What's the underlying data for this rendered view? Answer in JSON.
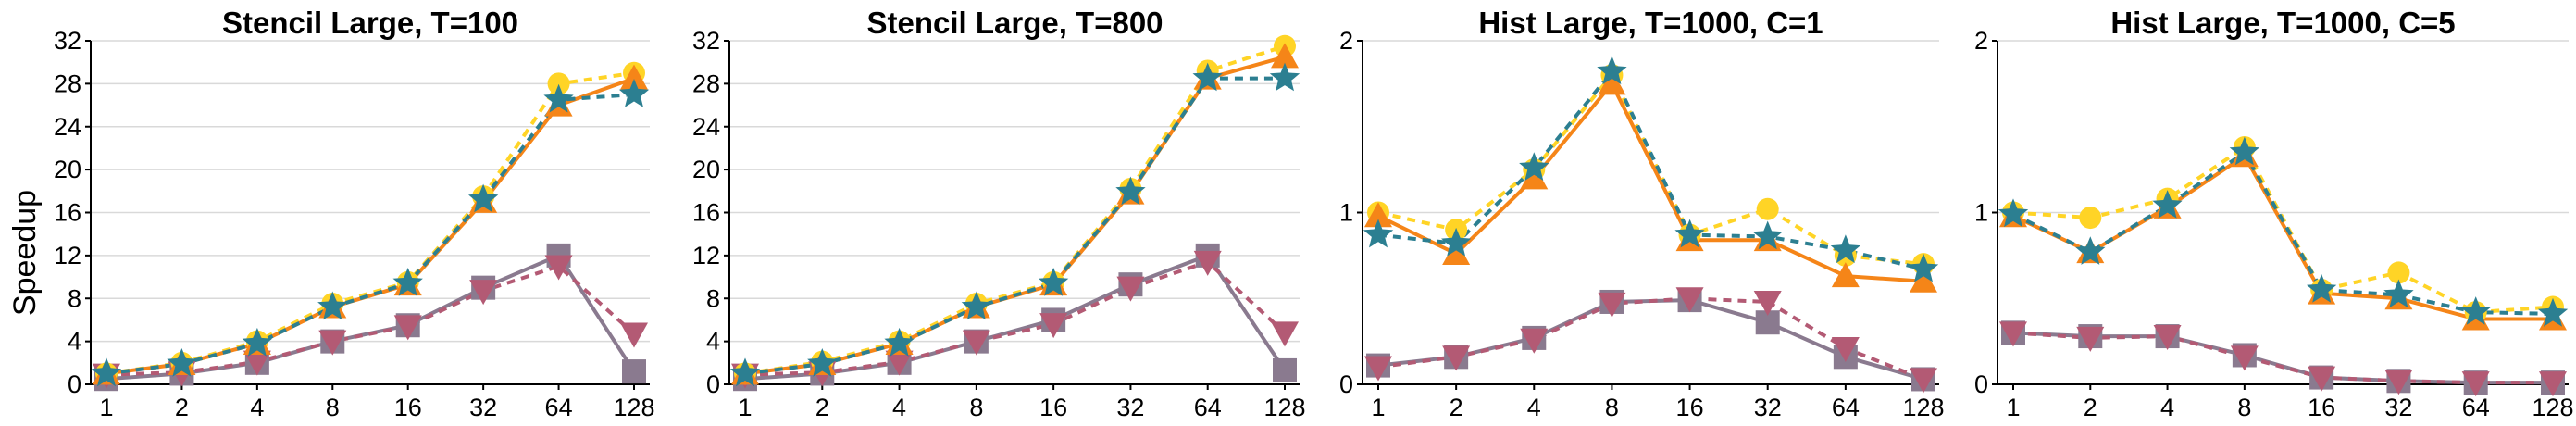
{
  "y_axis_label": "Speedup",
  "colors": {
    "yellow": "#ffd426",
    "orange": "#f58518",
    "teal": "#2c7f91",
    "rose": "#b35a74",
    "mauve": "#8a7a8f"
  },
  "chart_data": [
    {
      "type": "line",
      "title": "Stencil Large, T=100",
      "categories": [
        "1",
        "2",
        "4",
        "8",
        "16",
        "32",
        "64",
        "128"
      ],
      "ylim": [
        0,
        32
      ],
      "yticks": [
        0,
        4,
        8,
        12,
        16,
        20,
        24,
        28,
        32
      ],
      "grid": true,
      "series": [
        {
          "color": "#ffd426",
          "marker": "circle",
          "dash": true,
          "values": [
            1,
            2,
            4,
            7.5,
            9.5,
            17.5,
            28,
            29
          ]
        },
        {
          "color": "#f58518",
          "marker": "triangle-up",
          "dash": false,
          "values": [
            1,
            1.9,
            3.8,
            7.2,
            9.3,
            17,
            26,
            28.5
          ]
        },
        {
          "color": "#2c7f91",
          "marker": "star",
          "dash": true,
          "values": [
            1,
            1.9,
            3.8,
            7.2,
            9.4,
            17.2,
            26.5,
            27
          ]
        },
        {
          "color": "#b35a74",
          "marker": "triangle-down",
          "dash": true,
          "values": [
            0.9,
            1.1,
            2.1,
            4,
            5.4,
            8.7,
            11,
            4.7
          ]
        },
        {
          "color": "#8a7a8f",
          "marker": "square",
          "dash": false,
          "values": [
            0.5,
            1,
            2,
            4,
            5.5,
            9,
            12,
            1.2
          ]
        }
      ]
    },
    {
      "type": "line",
      "title": "Stencil Large, T=800",
      "categories": [
        "1",
        "2",
        "4",
        "8",
        "16",
        "32",
        "64",
        "128"
      ],
      "ylim": [
        0,
        32
      ],
      "yticks": [
        0,
        4,
        8,
        12,
        16,
        20,
        24,
        28,
        32
      ],
      "grid": true,
      "series": [
        {
          "color": "#ffd426",
          "marker": "circle",
          "dash": true,
          "values": [
            1,
            2.1,
            4,
            7.5,
            9.5,
            18.2,
            29.2,
            31.5
          ]
        },
        {
          "color": "#f58518",
          "marker": "triangle-up",
          "dash": false,
          "values": [
            1,
            1.9,
            3.8,
            7.2,
            9.3,
            17.8,
            28.5,
            30.5
          ]
        },
        {
          "color": "#2c7f91",
          "marker": "star",
          "dash": true,
          "values": [
            1,
            1.9,
            3.8,
            7.2,
            9.4,
            17.9,
            28.5,
            28.5
          ]
        },
        {
          "color": "#b35a74",
          "marker": "triangle-down",
          "dash": true,
          "values": [
            0.9,
            1.1,
            2.1,
            4,
            5.6,
            9,
            11.4,
            4.8
          ]
        },
        {
          "color": "#8a7a8f",
          "marker": "square",
          "dash": false,
          "values": [
            0.5,
            1,
            2,
            4,
            6,
            9.3,
            12,
            1.3
          ]
        }
      ]
    },
    {
      "type": "line",
      "title": "Hist Large, T=1000, C=1",
      "categories": [
        "1",
        "2",
        "4",
        "8",
        "16",
        "32",
        "64",
        "128"
      ],
      "ylim": [
        0,
        2
      ],
      "yticks": [
        0,
        1,
        2
      ],
      "grid": true,
      "series": [
        {
          "color": "#ffd426",
          "marker": "circle",
          "dash": true,
          "values": [
            1,
            0.9,
            1.25,
            1.8,
            0.87,
            1.02,
            0.75,
            0.7
          ]
        },
        {
          "color": "#f58518",
          "marker": "triangle-up",
          "dash": false,
          "values": [
            0.98,
            0.76,
            1.2,
            1.75,
            0.84,
            0.84,
            0.63,
            0.6
          ]
        },
        {
          "color": "#2c7f91",
          "marker": "star",
          "dash": true,
          "values": [
            0.87,
            0.82,
            1.26,
            1.82,
            0.87,
            0.86,
            0.78,
            0.67
          ]
        },
        {
          "color": "#b35a74",
          "marker": "triangle-down",
          "dash": true,
          "values": [
            0.1,
            0.16,
            0.26,
            0.47,
            0.5,
            0.48,
            0.21,
            0.03
          ]
        },
        {
          "color": "#8a7a8f",
          "marker": "square",
          "dash": false,
          "values": [
            0.11,
            0.16,
            0.27,
            0.48,
            0.49,
            0.36,
            0.16,
            0.03
          ]
        }
      ]
    },
    {
      "type": "line",
      "title": "Hist Large, T=1000, C=5",
      "categories": [
        "1",
        "2",
        "4",
        "8",
        "16",
        "32",
        "64",
        "128"
      ],
      "ylim": [
        0,
        2
      ],
      "yticks": [
        0,
        1,
        2
      ],
      "grid": true,
      "series": [
        {
          "color": "#ffd426",
          "marker": "circle",
          "dash": true,
          "values": [
            1,
            0.97,
            1.08,
            1.38,
            0.55,
            0.65,
            0.42,
            0.45
          ]
        },
        {
          "color": "#f58518",
          "marker": "triangle-up",
          "dash": false,
          "values": [
            0.98,
            0.77,
            1.03,
            1.33,
            0.53,
            0.5,
            0.38,
            0.38
          ]
        },
        {
          "color": "#2c7f91",
          "marker": "star",
          "dash": true,
          "values": [
            0.99,
            0.77,
            1.04,
            1.35,
            0.55,
            0.52,
            0.42,
            0.41
          ]
        },
        {
          "color": "#b35a74",
          "marker": "triangle-down",
          "dash": true,
          "values": [
            0.3,
            0.27,
            0.28,
            0.16,
            0.04,
            0.02,
            0.01,
            0.01
          ]
        },
        {
          "color": "#8a7a8f",
          "marker": "square",
          "dash": false,
          "values": [
            0.3,
            0.28,
            0.28,
            0.17,
            0.04,
            0.02,
            0.01,
            0.01
          ]
        }
      ]
    }
  ]
}
